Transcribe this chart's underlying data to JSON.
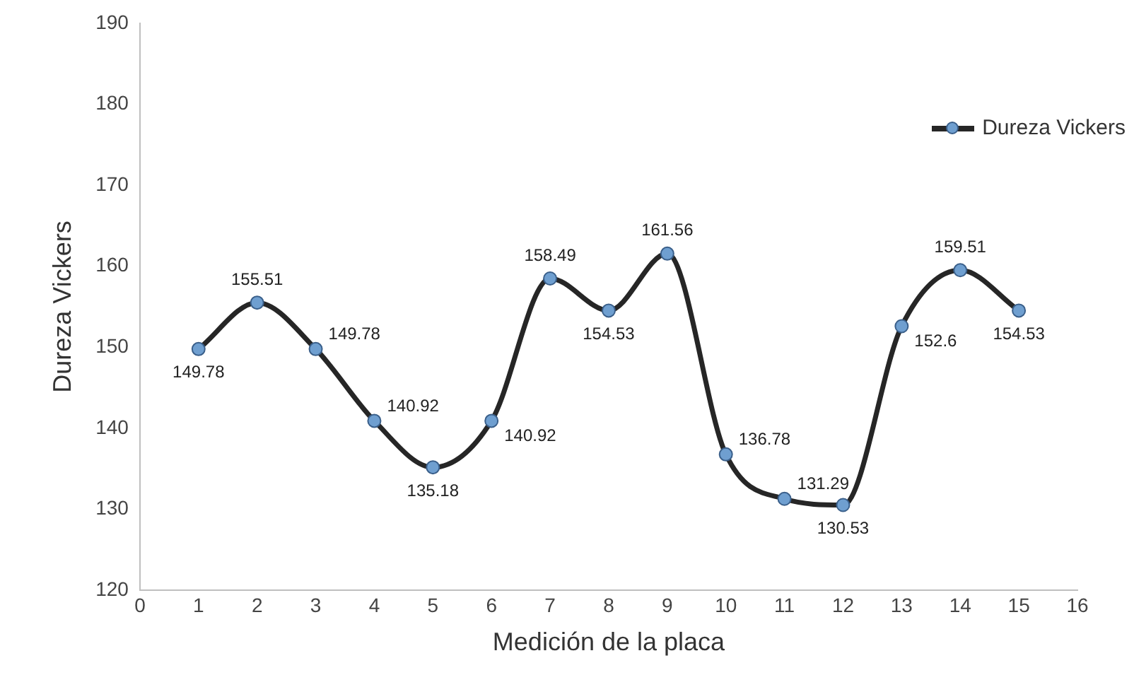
{
  "chart_data": {
    "type": "line",
    "xlabel": "Medición de la placa",
    "ylabel": "Dureza Vickers",
    "x": [
      1,
      2,
      3,
      4,
      5,
      6,
      7,
      8,
      9,
      10,
      11,
      12,
      13,
      14,
      15
    ],
    "series": [
      {
        "name": "Dureza Vickers",
        "color": "#262626",
        "values": [
          149.78,
          155.51,
          149.78,
          140.92,
          135.18,
          140.92,
          158.49,
          154.53,
          161.56,
          136.78,
          131.29,
          130.53,
          152.6,
          159.51,
          154.53
        ]
      }
    ],
    "xlim": [
      0,
      16
    ],
    "xticks": [
      0,
      1,
      2,
      3,
      4,
      5,
      6,
      7,
      8,
      9,
      10,
      11,
      12,
      13,
      14,
      15,
      16
    ],
    "ylim": [
      120,
      190
    ],
    "yticks": [
      120,
      130,
      140,
      150,
      160,
      170,
      180,
      190
    ],
    "grid": false,
    "legend": "top right",
    "marker": "circle",
    "line_style": "solid",
    "data_labels": true
  }
}
